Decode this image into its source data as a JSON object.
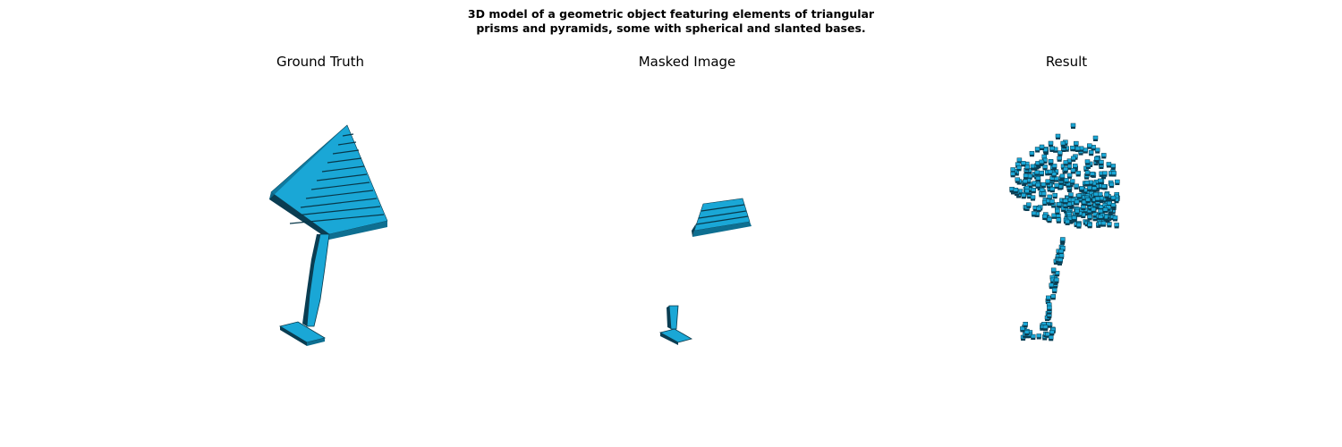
{
  "figure": {
    "title_line1": "3D model of a geometric object featuring elements of triangular",
    "title_line2": "prisms and pyramids, some with spherical and slanted bases."
  },
  "panels": [
    {
      "title": "Ground Truth"
    },
    {
      "title": "Masked Image"
    },
    {
      "title": "Result"
    }
  ],
  "colors": {
    "voxel_face": "#1aa7d6",
    "voxel_side": "#0e6f91",
    "voxel_dark": "#0a3d52",
    "edge": "#08384a"
  }
}
